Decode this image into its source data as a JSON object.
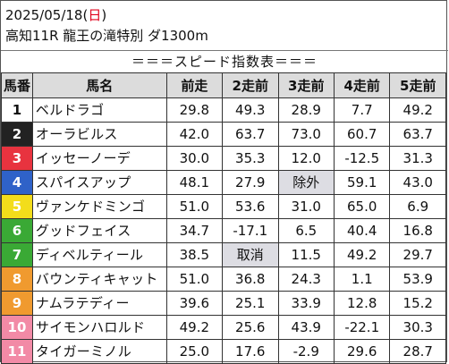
{
  "header": {
    "date": "2025/05/18",
    "weekday": "日",
    "race_title": "高知11R 龍王の滝特別 ダ1300m",
    "table_caption": "＝＝＝スピード指数表＝＝＝"
  },
  "table": {
    "columns": [
      "馬番",
      "馬名",
      "前走",
      "2走前",
      "3走前",
      "4走前",
      "5走前"
    ],
    "rows": [
      {
        "num": "1",
        "name": "ベルドラゴ",
        "vals": [
          "29.8",
          "49.3",
          "28.9",
          "7.7",
          "49.2"
        ]
      },
      {
        "num": "2",
        "name": "オーラビルス",
        "vals": [
          "42.0",
          "63.7",
          "73.0",
          "60.7",
          "63.7"
        ]
      },
      {
        "num": "3",
        "name": "イッセーノーデ",
        "vals": [
          "30.0",
          "35.3",
          "12.0",
          "-12.5",
          "31.3"
        ]
      },
      {
        "num": "4",
        "name": "スパイスアップ",
        "vals": [
          "48.1",
          "27.9",
          "除外",
          "59.1",
          "43.0"
        ]
      },
      {
        "num": "5",
        "name": "ヴァンケドミンゴ",
        "vals": [
          "51.0",
          "53.6",
          "31.0",
          "65.0",
          "6.9"
        ]
      },
      {
        "num": "6",
        "name": "グッドフェイス",
        "vals": [
          "34.7",
          "-17.1",
          "6.5",
          "40.4",
          "16.8"
        ]
      },
      {
        "num": "7",
        "name": "ディベルティール",
        "vals": [
          "38.5",
          "取消",
          "11.5",
          "49.2",
          "29.7"
        ]
      },
      {
        "num": "8",
        "name": "バウンティキャット",
        "vals": [
          "51.0",
          "36.8",
          "24.3",
          "1.1",
          "53.9"
        ]
      },
      {
        "num": "9",
        "name": "ナムラテディー",
        "vals": [
          "39.6",
          "25.1",
          "33.9",
          "12.8",
          "15.2"
        ]
      },
      {
        "num": "10",
        "name": "サイモンハロルド",
        "vals": [
          "49.2",
          "25.6",
          "43.9",
          "-22.1",
          "30.3"
        ]
      },
      {
        "num": "11",
        "name": "タイガーミノル",
        "vals": [
          "25.0",
          "17.6",
          "-2.9",
          "29.6",
          "28.7"
        ]
      }
    ]
  },
  "colors": {
    "sunday": "#e0001b",
    "header_bg": "#dcdcdc",
    "highlight_cell": "#dddde3",
    "bracket": [
      "#ffffff",
      "#222222",
      "#e8333f",
      "#2f62c8",
      "#f3dd1b",
      "#3aa935",
      "#3aa935",
      "#f09a2f",
      "#f09a2f",
      "#f28aa6",
      "#f28aa6"
    ]
  }
}
